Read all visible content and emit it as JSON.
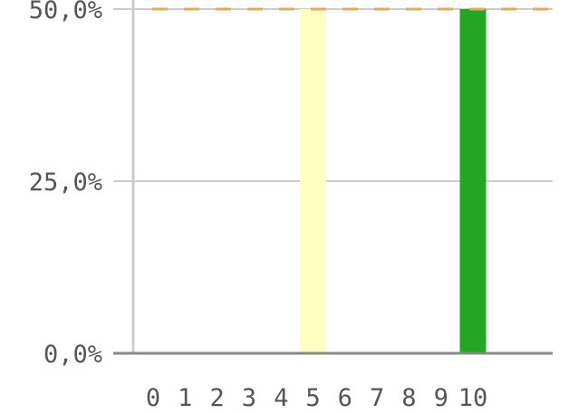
{
  "chart_data": {
    "type": "bar",
    "categories": [
      "0",
      "1",
      "2",
      "3",
      "4",
      "5",
      "6",
      "7",
      "8",
      "9",
      "10"
    ],
    "values": [
      0,
      0,
      0,
      0,
      0,
      50,
      0,
      0,
      0,
      0,
      50
    ],
    "bar_colors": [
      "#22a722",
      "#22a722",
      "#22a722",
      "#22a722",
      "#22a722",
      "#ffffc0",
      "#22a722",
      "#22a722",
      "#22a722",
      "#22a722",
      "#22a722"
    ],
    "ylim": [
      0,
      50
    ],
    "yticks": [
      0,
      25,
      50
    ],
    "ytick_labels": [
      "0,0%",
      "25,0%",
      "50,0%"
    ],
    "reference_line": {
      "value": 50,
      "style": "dashed",
      "color": "#e8a858"
    },
    "grid": true,
    "axis_color": "#888888",
    "grid_color": "#cccccc"
  }
}
